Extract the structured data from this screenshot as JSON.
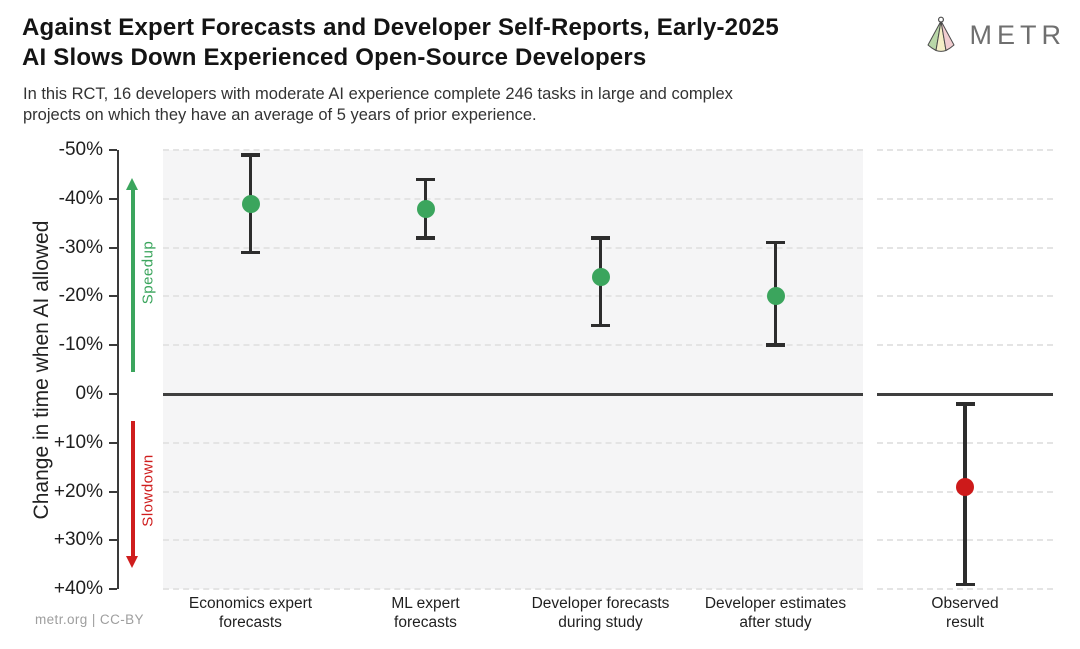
{
  "header": {
    "title_line1": "Against Expert Forecasts and Developer Self-Reports, Early-2025",
    "title_line2": "AI Slows Down Experienced Open-Source Developers",
    "subtitle_line1": "In this RCT, 16 developers with moderate AI experience complete 246 tasks in large and complex",
    "subtitle_line2": "projects on which they have an average of 5 years of prior experience.",
    "logo_text": "METR"
  },
  "footer": {
    "credit": "metr.org  |  CC-BY"
  },
  "colors": {
    "speedup_green": "#3ba55d",
    "slowdown_red": "#cf1d1d",
    "panel_bg": "#f5f5f6",
    "gridline": "#e4e4e4",
    "axis": "#3a3a3a"
  },
  "chart_data": {
    "type": "scatter",
    "subtype": "point-estimates-with-error-bars",
    "ylabel": "Change in time when AI allowed",
    "ylim": [
      -50,
      40
    ],
    "y_axis_inverted": true,
    "yticks": [
      -50,
      -40,
      -30,
      -20,
      -10,
      0,
      10,
      20,
      30,
      40
    ],
    "ytick_labels": [
      "-50%",
      "-40%",
      "-30%",
      "-20%",
      "-10%",
      "0%",
      "+10%",
      "+20%",
      "+30%",
      "+40%"
    ],
    "grid": "horizontal-dashed",
    "zero_line": true,
    "annotations": [
      {
        "text": "Speedup",
        "direction": "up",
        "color": "#3ba55d"
      },
      {
        "text": "Slowdown",
        "direction": "down",
        "color": "#cf1d1d"
      }
    ],
    "series": [
      {
        "label": "Economics expert forecasts",
        "label_lines": [
          "Economics expert",
          "forecasts"
        ],
        "value_pct": -39,
        "ci_pct": [
          -49,
          -29
        ],
        "color": "#3ba55d",
        "panel": "forecasts"
      },
      {
        "label": "ML expert forecasts",
        "label_lines": [
          "ML expert",
          "forecasts"
        ],
        "value_pct": -38,
        "ci_pct": [
          -44,
          -32
        ],
        "color": "#3ba55d",
        "panel": "forecasts"
      },
      {
        "label": "Developer forecasts during study",
        "label_lines": [
          "Developer forecasts",
          "during study"
        ],
        "value_pct": -24,
        "ci_pct": [
          -32,
          -14
        ],
        "color": "#3ba55d",
        "panel": "forecasts"
      },
      {
        "label": "Developer estimates after study",
        "label_lines": [
          "Developer estimates",
          "after study"
        ],
        "value_pct": -20,
        "ci_pct": [
          -31,
          -10
        ],
        "color": "#3ba55d",
        "panel": "forecasts"
      },
      {
        "label": "Observed result",
        "label_lines": [
          "Observed",
          "result"
        ],
        "value_pct": 19,
        "ci_pct": [
          2,
          39
        ],
        "color": "#cd1a1a",
        "panel": "observed"
      }
    ]
  }
}
